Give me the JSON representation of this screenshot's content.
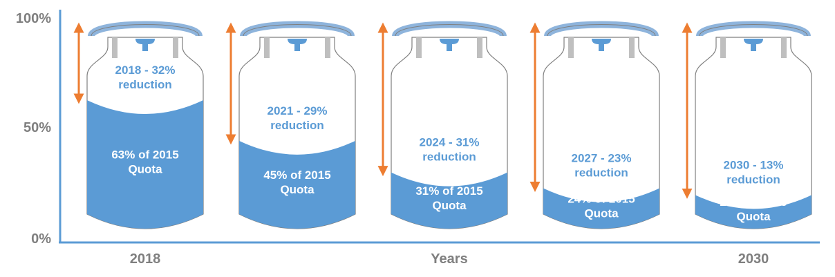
{
  "chart_data": {
    "type": "bar",
    "style": "gas-cylinder pictogram with fill level",
    "xlabel": "Years",
    "x_tick_labels": [
      "2018",
      "2030"
    ],
    "y_tick_labels": [
      "100%",
      "50%",
      "0%"
    ],
    "ylim": [
      0,
      100
    ],
    "categories": [
      "2018",
      "2021",
      "2024",
      "2027",
      "2030"
    ],
    "values": [
      63,
      45,
      31,
      24,
      21
    ],
    "reductions": [
      32,
      29,
      31,
      23,
      13
    ],
    "value_labels": [
      [
        "63% of 2015",
        "Quota"
      ],
      [
        "45% of 2015",
        "Quota"
      ],
      [
        "31% of 2015",
        "Quota"
      ],
      [
        "24% of 2015",
        "Quota"
      ],
      [
        "21% of 2015",
        "Quota"
      ]
    ],
    "reduction_labels": [
      [
        "2018 - 32%",
        "reduction"
      ],
      [
        "2021 - 29%",
        "reduction"
      ],
      [
        "2024 - 31%",
        "reduction"
      ],
      [
        "2027 - 23%",
        "reduction"
      ],
      [
        "2030 - 13%",
        "reduction"
      ]
    ],
    "colors": {
      "fill": "#5b9bd5",
      "arrow": "#ed7d31",
      "outline": "#a6a6a6",
      "axis": "#5b9bd5",
      "text": "#7f7f7f"
    }
  }
}
